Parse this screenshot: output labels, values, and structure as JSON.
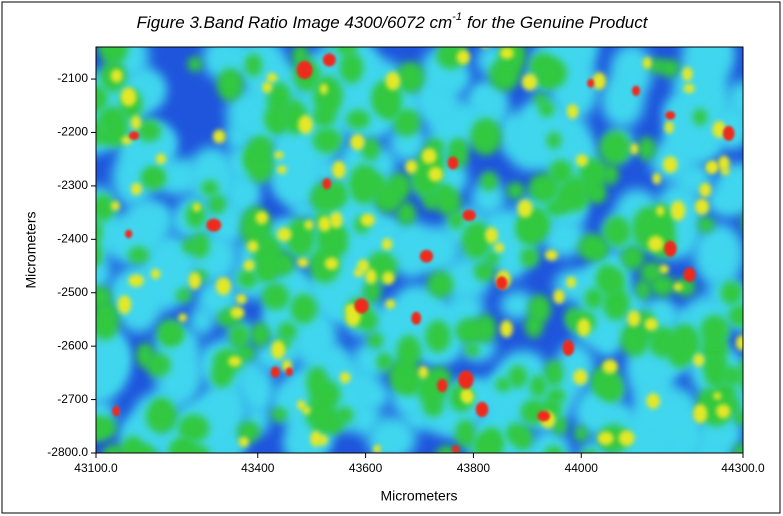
{
  "chart_data": {
    "type": "heatmap",
    "title": "Figure 3.Band Ratio Image 4300/6072 cm",
    "title_superscript": "-1",
    "title_suffix": "for the Genuine Product",
    "xlabel": "Micrometers",
    "ylabel": "Micrometers",
    "xlim": [
      43100,
      44300
    ],
    "xticks": [
      {
        "value": 43100,
        "label": "43100.0"
      },
      43400,
      43600,
      43800,
      44000,
      {
        "value": 44300,
        "label": "44300.0"
      }
    ],
    "ylim": [
      -2800,
      -2040
    ],
    "yticks": [
      {
        "value": -2800,
        "label": "-2800.0"
      },
      -2700,
      -2600,
      -2500,
      -2400,
      -2300,
      -2200,
      -2100
    ]
  }
}
